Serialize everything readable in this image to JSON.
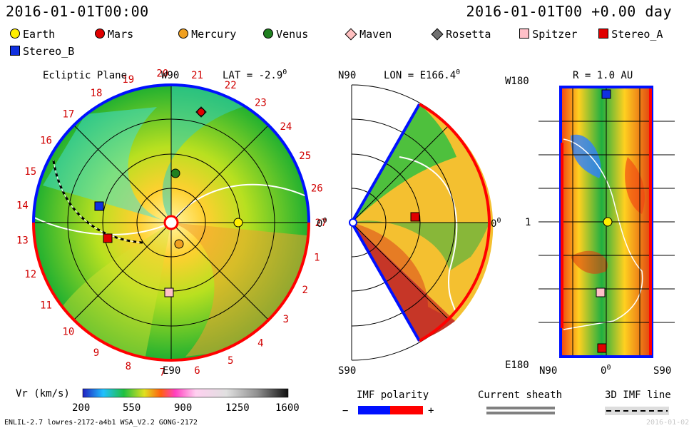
{
  "header": {
    "left_time": "2016-01-01T00:00",
    "right_time": "2016-01-01T00 +0.00 day"
  },
  "legend": [
    {
      "name": "Earth",
      "color": "#ffee00",
      "shape": "circle"
    },
    {
      "name": "Mars",
      "color": "#e00000",
      "shape": "circle"
    },
    {
      "name": "Mercury",
      "color": "#f0a020",
      "shape": "circle"
    },
    {
      "name": "Venus",
      "color": "#208020",
      "shape": "circle"
    },
    {
      "name": "Maven",
      "color": "#ffc0c0",
      "shape": "diamond"
    },
    {
      "name": "Rosetta",
      "color": "#707070",
      "shape": "diamond"
    },
    {
      "name": "Spitzer",
      "color": "#ffc0c8",
      "shape": "square"
    },
    {
      "name": "Stereo_A",
      "color": "#e00000",
      "shape": "square"
    },
    {
      "name": "Stereo_B",
      "color": "#1030e0",
      "shape": "square"
    }
  ],
  "panel_ecliptic": {
    "title": "Ecliptic Plane",
    "top_label": "W90",
    "bottom_label": "E90",
    "lat_label": "LAT = -2.9",
    "degree_sup": "0",
    "right_label": "0",
    "ticks": [
      "20",
      "21",
      "22",
      "23",
      "24",
      "25",
      "26",
      "27",
      "1",
      "2",
      "3",
      "4",
      "5",
      "6",
      "7",
      "8",
      "9",
      "10",
      "11",
      "12",
      "13",
      "14",
      "15",
      "16",
      "17",
      "18",
      "19"
    ]
  },
  "panel_meridional": {
    "top_label": "N90",
    "bottom_label": "S90",
    "lon_label": "LON = E166.4",
    "degree_sup": "0",
    "right_label": "0"
  },
  "panel_sphere": {
    "top_left": "W180",
    "bottom_left": "E180",
    "mid_left": "1",
    "r_label": "R = 1.0 AU",
    "bottom_ticks": [
      "N90",
      "0",
      "S90"
    ],
    "degree_sup": "0"
  },
  "colorbar": {
    "label": "Vr (km/s)",
    "ticks": [
      "200",
      "550",
      "900",
      "1250",
      "1600"
    ]
  },
  "imf": {
    "polarity_label": "IMF polarity",
    "minus": "−",
    "plus": "+",
    "current_sheath": "Current sheath",
    "imf_line": "3D IMF line",
    "colors": {
      "neg": "#0010ff",
      "pos": "#ff0000"
    }
  },
  "footer": {
    "left": "ENLIL-2.7 lowres-2172-a4b1 WSA_V2.2 GONG-2172",
    "right": "2016-01-02"
  }
}
